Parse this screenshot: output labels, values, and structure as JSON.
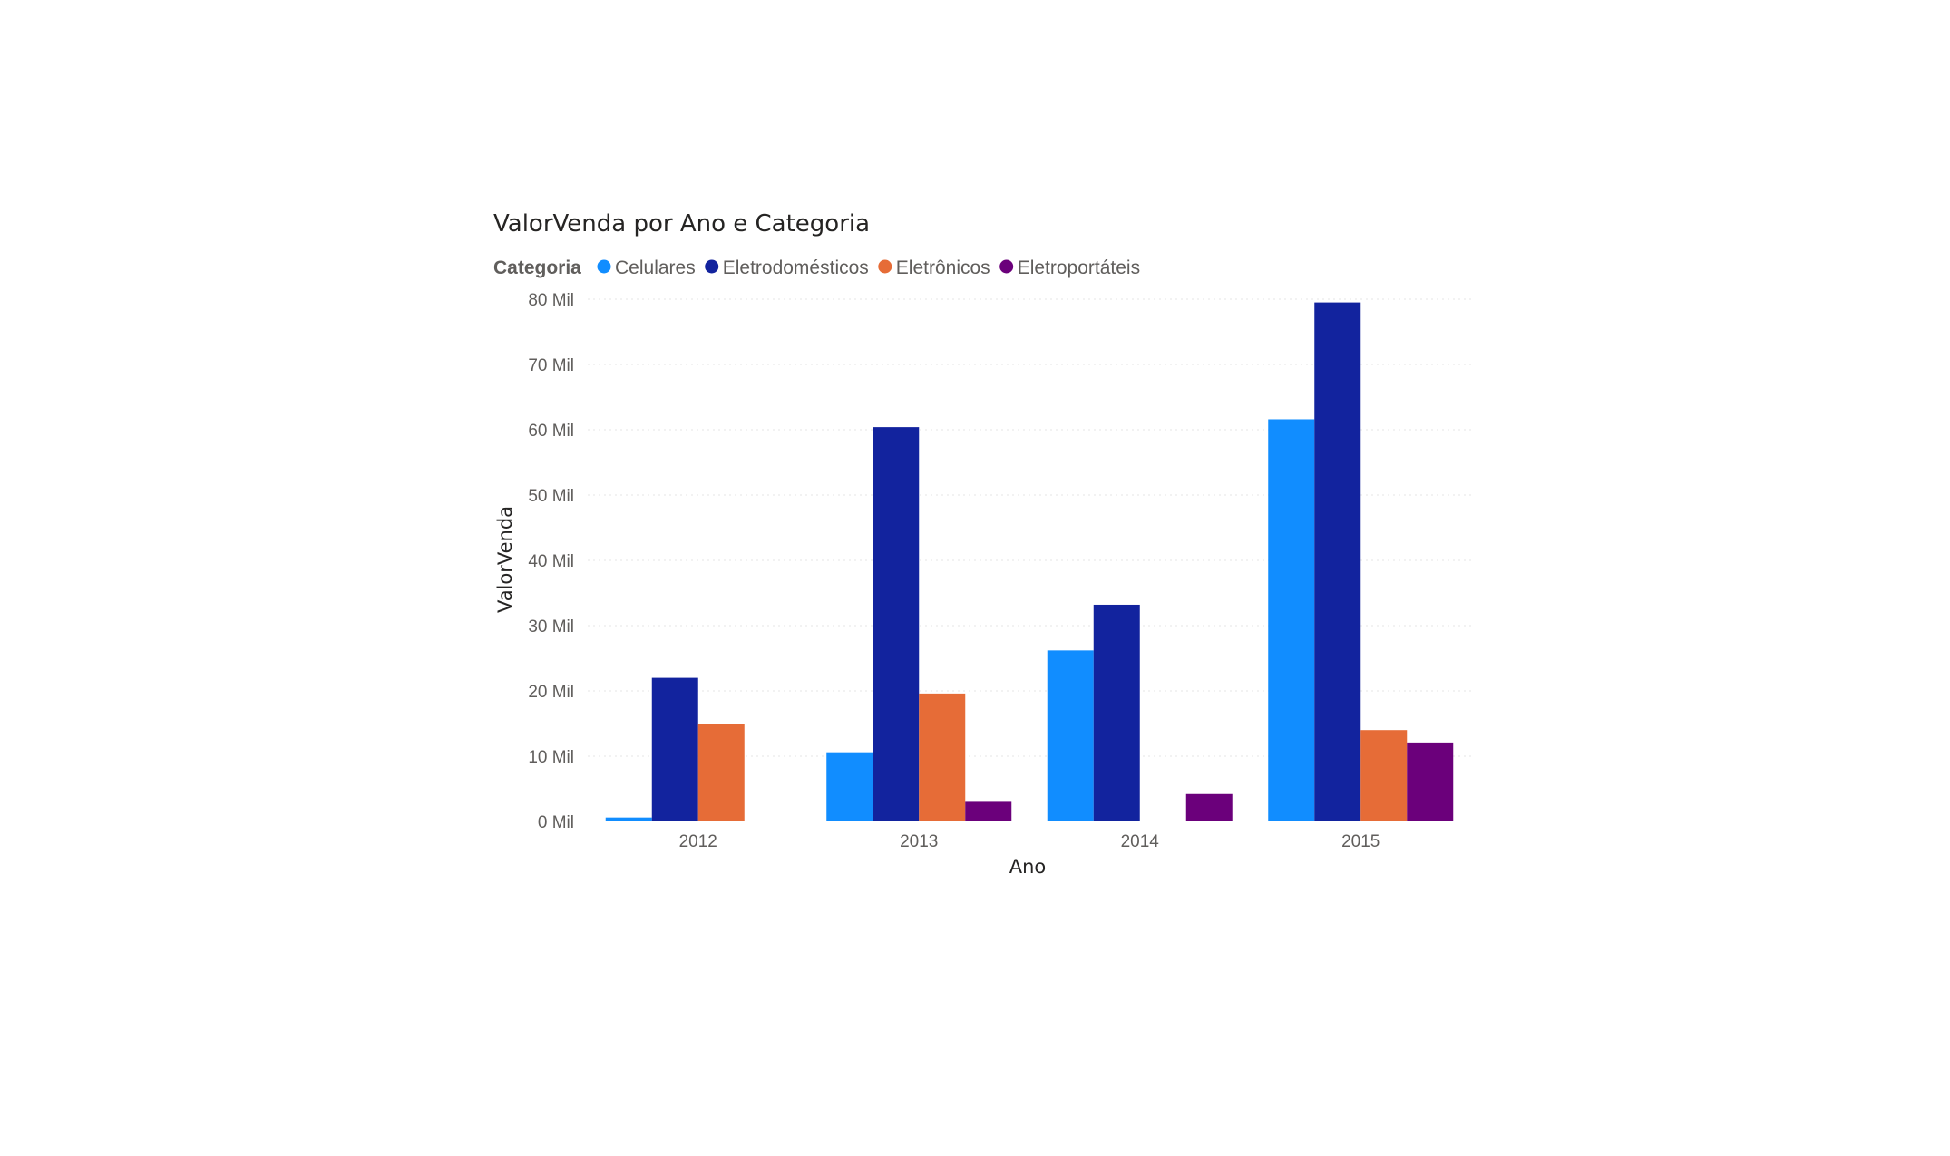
{
  "chart_data": {
    "type": "bar",
    "title": "ValorVenda por Ano e Categoria",
    "legend_title": "Categoria",
    "legend_position": "top-left",
    "xlabel": "Ano",
    "ylabel": "ValorVenda",
    "categories": [
      "2012",
      "2013",
      "2014",
      "2015"
    ],
    "series": [
      {
        "name": "Celulares",
        "color": "#118DFF",
        "values": [
          600,
          10600,
          26200,
          61600
        ]
      },
      {
        "name": "Eletrodomésticos",
        "color": "#12239E",
        "values": [
          22000,
          60400,
          33200,
          79500
        ]
      },
      {
        "name": "Eletrônicos",
        "color": "#E66C37",
        "values": [
          15000,
          19600,
          null,
          14000
        ]
      },
      {
        "name": "Eletroportáteis",
        "color": "#6B007B",
        "values": [
          null,
          3000,
          4200,
          12100
        ]
      }
    ],
    "ylim": [
      0,
      80000
    ],
    "yticks": [
      {
        "value": 0,
        "label": "0 Mil"
      },
      {
        "value": 10000,
        "label": "10 Mil"
      },
      {
        "value": 20000,
        "label": "20 Mil"
      },
      {
        "value": 30000,
        "label": "30 Mil"
      },
      {
        "value": 40000,
        "label": "40 Mil"
      },
      {
        "value": 50000,
        "label": "50 Mil"
      },
      {
        "value": 60000,
        "label": "60 Mil"
      },
      {
        "value": 70000,
        "label": "70 Mil"
      },
      {
        "value": 80000,
        "label": "80 Mil"
      }
    ],
    "grid": true
  }
}
